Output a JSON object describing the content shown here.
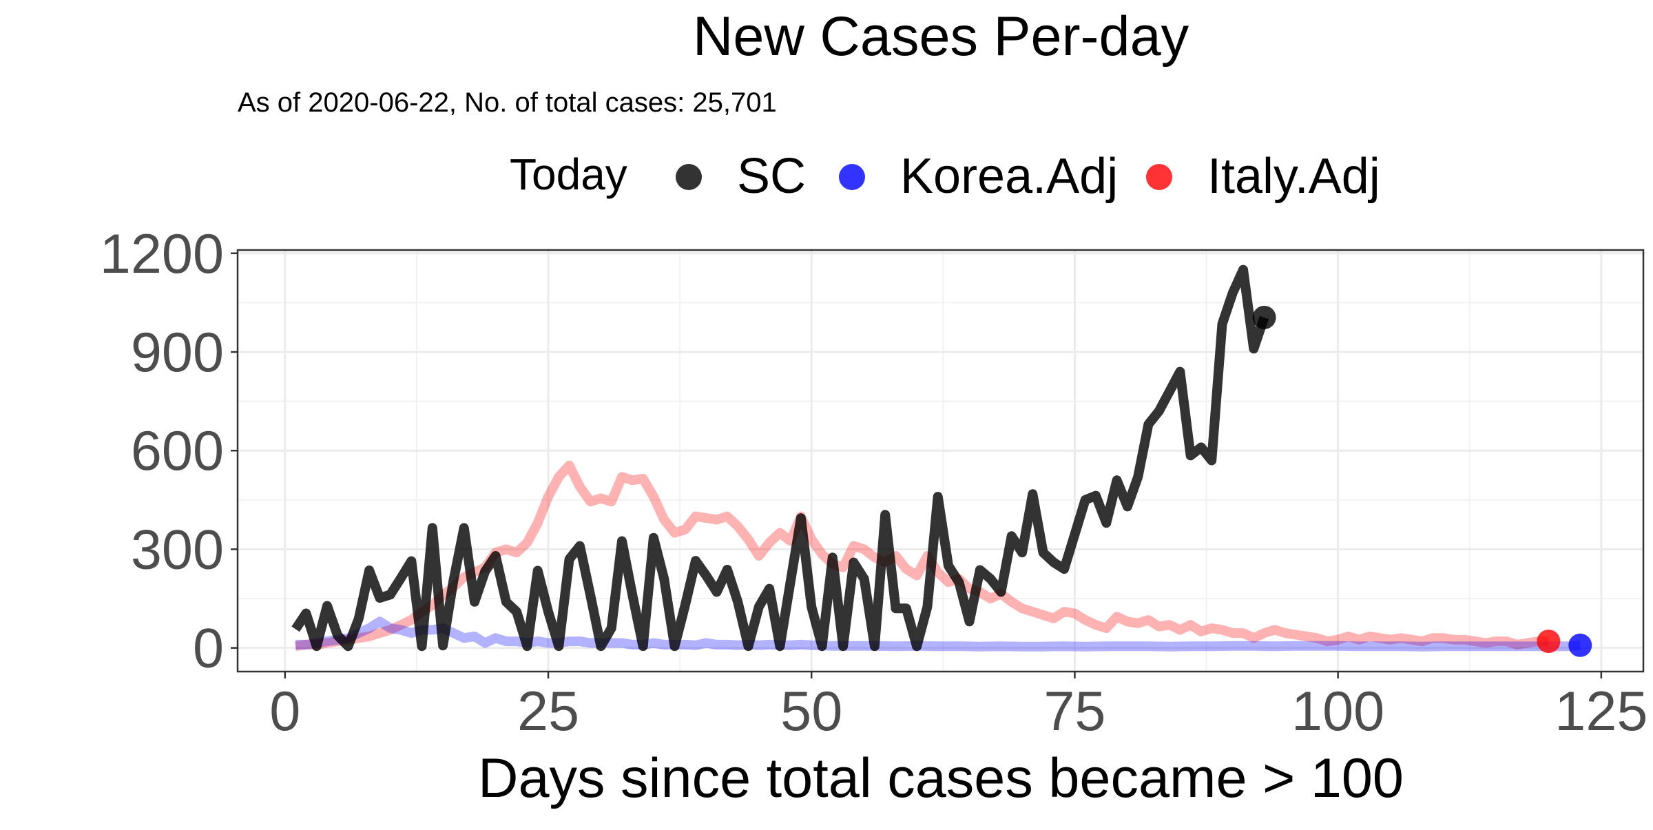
{
  "chart_data": {
    "type": "line",
    "title": "New Cases Per-day",
    "subtitle": "As of 2020-06-22, No. of total cases: 25,701",
    "xlabel": "Days since total cases became > 100",
    "ylabel": "",
    "xlim": [
      -4.5,
      129
    ],
    "ylim": [
      -72,
      1210
    ],
    "x_ticks": [
      0,
      25,
      50,
      75,
      100,
      125
    ],
    "y_ticks": [
      0,
      300,
      600,
      900,
      1200
    ],
    "grid": true,
    "legend": {
      "title": "Today",
      "position": "top",
      "entries": [
        {
          "name": "SC",
          "color": "#000000"
        },
        {
          "name": "Korea.Adj",
          "color": "#0000ff"
        },
        {
          "name": "Italy.Adj",
          "color": "#ff0000"
        }
      ]
    },
    "series": [
      {
        "name": "SC",
        "color": "#000000",
        "line_opacity": 0.8,
        "x": [
          1,
          2,
          3,
          4,
          5,
          6,
          7,
          8,
          9,
          10,
          11,
          12,
          13,
          14,
          15,
          16,
          17,
          18,
          19,
          20,
          21,
          22,
          23,
          24,
          25,
          26,
          27,
          28,
          29,
          30,
          31,
          32,
          33,
          34,
          35,
          36,
          37,
          38,
          39,
          40,
          41,
          42,
          43,
          44,
          45,
          46,
          47,
          48,
          49,
          50,
          51,
          52,
          53,
          54,
          55,
          56,
          57,
          58,
          59,
          60,
          61,
          62,
          63,
          64,
          65,
          66,
          67,
          68,
          69,
          70,
          71,
          72,
          73,
          74,
          75,
          76,
          77,
          78,
          79,
          80,
          81,
          82,
          83,
          84,
          85,
          86,
          87,
          88,
          89,
          90,
          91,
          92,
          93
        ],
        "y": [
          57,
          105,
          5,
          128,
          38,
          5,
          89,
          236,
          152,
          162,
          212,
          264,
          5,
          365,
          7,
          205,
          365,
          140,
          233,
          280,
          140,
          110,
          5,
          235,
          110,
          5,
          270,
          310,
          160,
          5,
          60,
          325,
          160,
          5,
          335,
          210,
          5,
          130,
          265,
          220,
          170,
          238,
          140,
          5,
          125,
          180,
          5,
          200,
          395,
          125,
          5,
          275,
          5,
          260,
          210,
          5,
          405,
          120,
          120,
          5,
          125,
          460,
          250,
          200,
          80,
          237,
          210,
          170,
          340,
          290,
          468,
          290,
          260,
          240,
          345,
          450,
          463,
          380,
          510,
          430,
          520,
          680,
          720,
          780,
          840,
          585,
          610,
          570,
          985,
          1080,
          1150,
          910,
          1005
        ],
        "today": {
          "x": 93,
          "y": 1005
        }
      },
      {
        "name": "Korea.Adj",
        "color": "#0000ff",
        "line_opacity": 0.3,
        "x": [
          1,
          2,
          3,
          4,
          5,
          6,
          7,
          8,
          9,
          10,
          11,
          12,
          13,
          14,
          15,
          16,
          17,
          18,
          19,
          20,
          21,
          22,
          23,
          24,
          25,
          26,
          27,
          28,
          29,
          30,
          31,
          32,
          33,
          34,
          35,
          36,
          37,
          38,
          39,
          40,
          41,
          42,
          43,
          44,
          45,
          46,
          47,
          48,
          49,
          50,
          52,
          54,
          56,
          58,
          60,
          62,
          64,
          66,
          68,
          70,
          72,
          74,
          76,
          78,
          80,
          82,
          84,
          86,
          88,
          90,
          92,
          94,
          96,
          98,
          100,
          102,
          104,
          106,
          108,
          110,
          112,
          114,
          116,
          118,
          120,
          122,
          123
        ],
        "y": [
          10,
          10,
          15,
          20,
          25,
          30,
          45,
          60,
          80,
          60,
          55,
          45,
          55,
          55,
          60,
          45,
          30,
          35,
          15,
          30,
          20,
          20,
          15,
          20,
          15,
          15,
          20,
          20,
          15,
          15,
          15,
          15,
          10,
          10,
          15,
          10,
          10,
          10,
          8,
          15,
          10,
          10,
          8,
          10,
          8,
          10,
          8,
          8,
          10,
          8,
          6,
          6,
          6,
          5,
          6,
          5,
          5,
          4,
          5,
          4,
          4,
          5,
          4,
          5,
          5,
          5,
          4,
          5,
          5,
          6,
          6,
          5,
          6,
          6,
          6,
          5,
          5,
          5,
          4,
          5,
          5,
          5,
          5,
          5,
          5,
          5,
          8
        ],
        "today": {
          "x": 123,
          "y": 8
        }
      },
      {
        "name": "Italy.Adj",
        "color": "#ff0000",
        "line_opacity": 0.3,
        "x": [
          1,
          2,
          3,
          4,
          5,
          6,
          7,
          8,
          9,
          10,
          11,
          12,
          13,
          14,
          15,
          16,
          17,
          18,
          19,
          20,
          21,
          22,
          23,
          24,
          25,
          26,
          27,
          28,
          29,
          30,
          31,
          32,
          33,
          34,
          35,
          36,
          37,
          38,
          39,
          40,
          41,
          42,
          43,
          44,
          45,
          46,
          47,
          48,
          49,
          50,
          51,
          52,
          53,
          54,
          55,
          56,
          57,
          58,
          59,
          60,
          61,
          62,
          63,
          64,
          65,
          66,
          67,
          68,
          69,
          70,
          71,
          72,
          73,
          74,
          75,
          76,
          77,
          78,
          79,
          80,
          81,
          82,
          83,
          84,
          85,
          86,
          87,
          88,
          89,
          90,
          91,
          92,
          93,
          94,
          95,
          96,
          97,
          98,
          99,
          100,
          101,
          102,
          103,
          104,
          105,
          106,
          107,
          108,
          109,
          110,
          111,
          112,
          113,
          114,
          115,
          116,
          117,
          118,
          119,
          120
        ],
        "y": [
          5,
          10,
          10,
          15,
          20,
          25,
          30,
          35,
          45,
          55,
          70,
          85,
          110,
          130,
          160,
          185,
          215,
          230,
          245,
          290,
          300,
          290,
          320,
          380,
          460,
          520,
          555,
          490,
          445,
          455,
          445,
          520,
          510,
          515,
          460,
          390,
          350,
          360,
          400,
          395,
          390,
          400,
          370,
          330,
          280,
          320,
          350,
          325,
          400,
          330,
          285,
          255,
          245,
          310,
          300,
          275,
          260,
          280,
          240,
          220,
          280,
          230,
          200,
          210,
          180,
          170,
          150,
          165,
          140,
          120,
          110,
          100,
          90,
          110,
          105,
          85,
          70,
          60,
          95,
          80,
          75,
          85,
          65,
          70,
          55,
          70,
          50,
          60,
          55,
          45,
          45,
          30,
          45,
          55,
          45,
          40,
          35,
          30,
          20,
          25,
          35,
          25,
          35,
          30,
          25,
          30,
          25,
          20,
          30,
          30,
          25,
          25,
          20,
          15,
          20,
          20,
          10,
          15,
          20,
          20
        ],
        "today": {
          "x": 120,
          "y": 20
        }
      }
    ]
  }
}
